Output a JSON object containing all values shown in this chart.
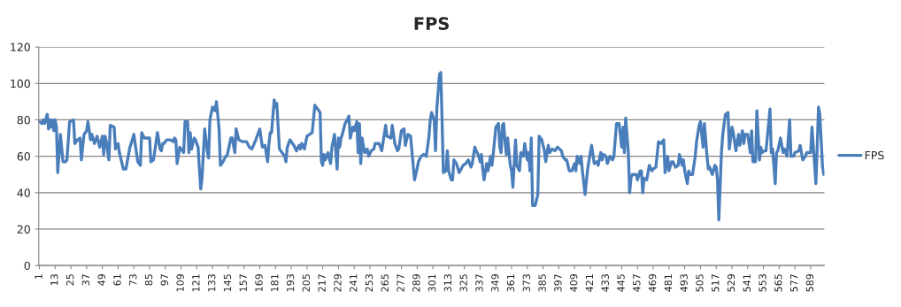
{
  "chart_data": {
    "type": "line",
    "title": "FPS",
    "x": [
      1,
      3,
      4,
      5,
      7,
      8,
      9,
      10,
      11,
      12,
      13,
      14,
      15,
      17,
      19,
      21,
      22,
      24,
      27,
      28,
      30,
      32,
      33,
      35,
      37,
      38,
      40,
      41,
      43,
      45,
      47,
      49,
      50,
      51,
      52,
      54,
      55,
      58,
      59,
      61,
      62,
      65,
      67,
      70,
      71,
      73,
      76,
      78,
      79,
      81,
      83,
      85,
      86,
      88,
      91,
      93,
      94,
      95,
      96,
      98,
      101,
      103,
      104,
      105,
      106,
      108,
      109,
      111,
      112,
      114,
      115,
      116,
      117,
      119,
      120,
      122,
      123,
      124,
      125,
      127,
      129,
      130,
      131,
      133,
      135,
      136,
      138,
      139,
      141,
      143,
      144,
      147,
      148,
      150,
      151,
      153,
      156,
      159,
      161,
      163,
      166,
      169,
      171,
      173,
      175,
      176,
      177,
      178,
      180,
      181,
      182,
      184,
      186,
      188,
      189,
      190,
      192,
      195,
      197,
      199,
      200,
      201,
      203,
      205,
      207,
      209,
      211,
      213,
      215,
      216,
      217,
      218,
      219,
      221,
      223,
      224,
      226,
      228,
      229,
      230,
      231,
      232,
      234,
      235,
      237,
      238,
      240,
      241,
      243,
      244,
      245,
      246,
      247,
      249,
      251,
      252,
      254,
      256,
      257,
      260,
      262,
      265,
      266,
      269,
      270,
      272,
      274,
      275,
      277,
      279,
      280,
      282,
      284,
      286,
      287,
      288,
      290,
      292,
      294,
      296,
      298,
      299,
      300,
      302,
      303,
      304,
      306,
      307,
      308,
      309,
      311,
      312,
      313,
      315,
      316,
      317,
      319,
      321,
      324,
      326,
      328,
      330,
      331,
      333,
      334,
      336,
      337,
      338,
      339,
      340,
      342,
      343,
      345,
      346,
      347,
      349,
      351,
      352,
      353,
      354,
      355,
      356,
      357,
      358,
      360,
      361,
      362,
      364,
      365,
      367,
      368,
      370,
      371,
      373,
      374,
      375,
      376,
      377,
      379,
      381,
      382,
      384,
      386,
      387,
      389,
      390,
      392,
      394,
      396,
      399,
      400,
      402,
      403,
      405,
      407,
      409,
      410,
      411,
      413,
      414,
      415,
      417,
      419,
      421,
      422,
      424,
      426,
      427,
      429,
      430,
      431,
      433,
      434,
      436,
      438,
      439,
      441,
      443,
      445,
      446,
      447,
      448,
      450,
      451,
      452,
      453,
      454,
      456,
      457,
      459,
      460,
      461,
      462,
      464,
      466,
      468,
      469,
      471,
      473,
      475,
      477,
      478,
      480,
      481,
      483,
      484,
      486,
      488,
      489,
      491,
      492,
      493,
      495,
      496,
      497,
      499,
      501,
      502,
      504,
      505,
      507,
      508,
      510,
      511,
      512,
      514,
      516,
      517,
      518,
      519,
      521,
      522,
      524,
      526,
      527,
      529,
      530,
      532,
      534,
      535,
      537,
      538,
      539,
      541,
      543,
      544,
      545,
      547,
      548,
      550,
      551,
      552,
      554,
      555,
      558,
      559,
      560,
      562,
      563,
      564,
      566,
      568,
      569,
      571,
      573,
      574,
      576,
      577,
      580,
      581,
      583,
      585,
      586,
      589,
      590,
      592,
      593,
      594,
      595,
      596,
      598,
      599
    ],
    "series": [
      {
        "name": "FPS",
        "color": "#4a7ebb",
        "values": [
          79,
          78,
          80,
          78,
          83,
          75,
          80,
          76,
          80,
          74,
          80,
          76,
          51,
          72,
          57,
          57,
          58,
          79,
          80,
          67,
          69,
          70,
          58,
          72,
          74,
          79,
          69,
          72,
          67,
          71,
          65,
          71,
          61,
          71,
          68,
          58,
          77,
          76,
          64,
          67,
          62,
          53,
          53,
          65,
          67,
          72,
          57,
          55,
          73,
          70,
          70,
          70,
          57,
          58,
          73,
          64,
          63,
          67,
          67,
          69,
          69,
          68,
          70,
          69,
          56,
          65,
          64,
          62,
          79,
          79,
          62,
          73,
          64,
          70,
          69,
          65,
          53,
          42,
          48,
          75,
          63,
          59,
          80,
          87,
          85,
          90,
          75,
          55,
          57,
          60,
          60,
          70,
          70,
          62,
          75,
          69,
          68,
          68,
          65,
          64,
          69,
          75,
          65,
          66,
          57,
          67,
          73,
          73,
          91,
          87,
          89,
          64,
          62,
          60,
          57,
          65,
          69,
          66,
          63,
          66,
          64,
          67,
          64,
          71,
          72,
          73,
          88,
          86,
          84,
          57,
          55,
          61,
          58,
          62,
          56,
          65,
          72,
          53,
          70,
          65,
          70,
          72,
          78,
          79,
          82,
          70,
          76,
          74,
          79,
          62,
          78,
          56,
          70,
          62,
          64,
          60,
          63,
          64,
          67,
          67,
          63,
          77,
          71,
          70,
          77,
          67,
          63,
          64,
          74,
          75,
          66,
          72,
          71,
          55,
          47,
          50,
          57,
          60,
          61,
          60,
          71,
          80,
          84,
          80,
          63,
          86,
          105,
          106,
          80,
          51,
          52,
          63,
          52,
          47,
          47,
          58,
          56,
          51,
          55,
          56,
          58,
          54,
          56,
          65,
          63,
          60,
          57,
          61,
          53,
          47,
          56,
          52,
          60,
          55,
          61,
          76,
          78,
          65,
          62,
          77,
          78,
          68,
          61,
          70,
          55,
          52,
          43,
          69,
          55,
          52,
          62,
          60,
          67,
          58,
          62,
          52,
          70,
          33,
          33,
          39,
          71,
          69,
          63,
          57,
          66,
          62,
          64,
          63,
          65,
          63,
          60,
          58,
          58,
          52,
          52,
          56,
          52,
          60,
          56,
          60,
          52,
          39,
          53,
          62,
          66,
          56,
          57,
          55,
          62,
          58,
          61,
          60,
          56,
          60,
          58,
          60,
          78,
          78,
          65,
          76,
          62,
          81,
          62,
          40,
          48,
          50,
          50,
          50,
          47,
          52,
          52,
          40,
          48,
          47,
          55,
          52,
          53,
          54,
          68,
          67,
          69,
          51,
          60,
          52,
          57,
          57,
          54,
          55,
          61,
          55,
          58,
          52,
          45,
          52,
          50,
          50,
          60,
          68,
          77,
          79,
          65,
          78,
          60,
          53,
          54,
          50,
          55,
          54,
          47,
          25,
          62,
          72,
          83,
          84,
          64,
          76,
          73,
          63,
          72,
          66,
          74,
          67,
          72,
          72,
          62,
          74,
          57,
          57,
          85,
          58,
          65,
          62,
          63,
          63,
          86,
          62,
          64,
          45,
          62,
          63,
          70,
          62,
          64,
          60,
          80,
          60,
          60,
          62,
          63,
          66,
          58,
          60,
          62,
          62,
          76,
          56,
          45,
          65,
          87,
          83,
          55,
          50
        ]
      }
    ],
    "xlim": [
      0.5,
      599.5
    ],
    "xticks": [
      1,
      13,
      25,
      37,
      49,
      61,
      73,
      85,
      97,
      109,
      121,
      133,
      145,
      157,
      169,
      181,
      193,
      205,
      217,
      229,
      241,
      253,
      265,
      277,
      289,
      301,
      313,
      325,
      337,
      349,
      361,
      373,
      385,
      397,
      409,
      421,
      433,
      445,
      457,
      469,
      481,
      493,
      505,
      517,
      529,
      541,
      553,
      565,
      577,
      589
    ],
    "ylim": [
      0,
      120
    ],
    "yticks": [
      0,
      20,
      40,
      60,
      80,
      100,
      120
    ],
    "grid": "y",
    "legend": "right"
  }
}
